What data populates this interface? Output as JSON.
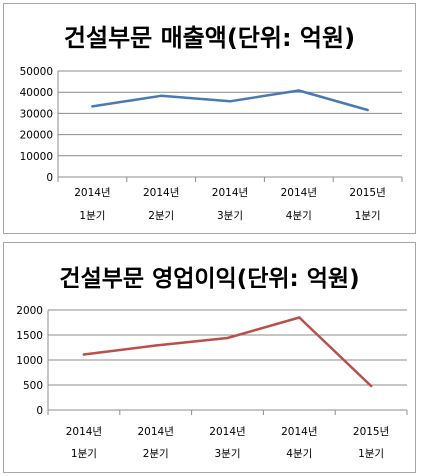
{
  "chart_data": [
    {
      "type": "line",
      "title": "건설부문 매출액(단위: 억원)",
      "categories": [
        [
          "2014년",
          "1분기"
        ],
        [
          "2014년",
          "2분기"
        ],
        [
          "2014년",
          "3분기"
        ],
        [
          "2014년",
          "4분기"
        ],
        [
          "2015년",
          "1분기"
        ]
      ],
      "values": [
        33300,
        38300,
        35700,
        40800,
        31600
      ],
      "yticks": [
        "0",
        "10000",
        "20000",
        "30000",
        "40000",
        "50000"
      ],
      "ylim": [
        0,
        50000
      ],
      "grid": true,
      "legend": "none",
      "color": "#4a7ab2"
    },
    {
      "type": "line",
      "title": "건설부문 영업이익(단위: 억원)",
      "categories": [
        [
          "2014년",
          "1분기"
        ],
        [
          "2014년",
          "2분기"
        ],
        [
          "2014년",
          "3분기"
        ],
        [
          "2014년",
          "4분기"
        ],
        [
          "2015년",
          "1분기"
        ]
      ],
      "values": [
        1110,
        1290,
        1440,
        1850,
        480
      ],
      "yticks": [
        "0",
        "500",
        "1000",
        "1500",
        "2000"
      ],
      "ylim": [
        0,
        2000
      ],
      "grid": true,
      "legend": "none",
      "color": "#b9504c"
    }
  ]
}
